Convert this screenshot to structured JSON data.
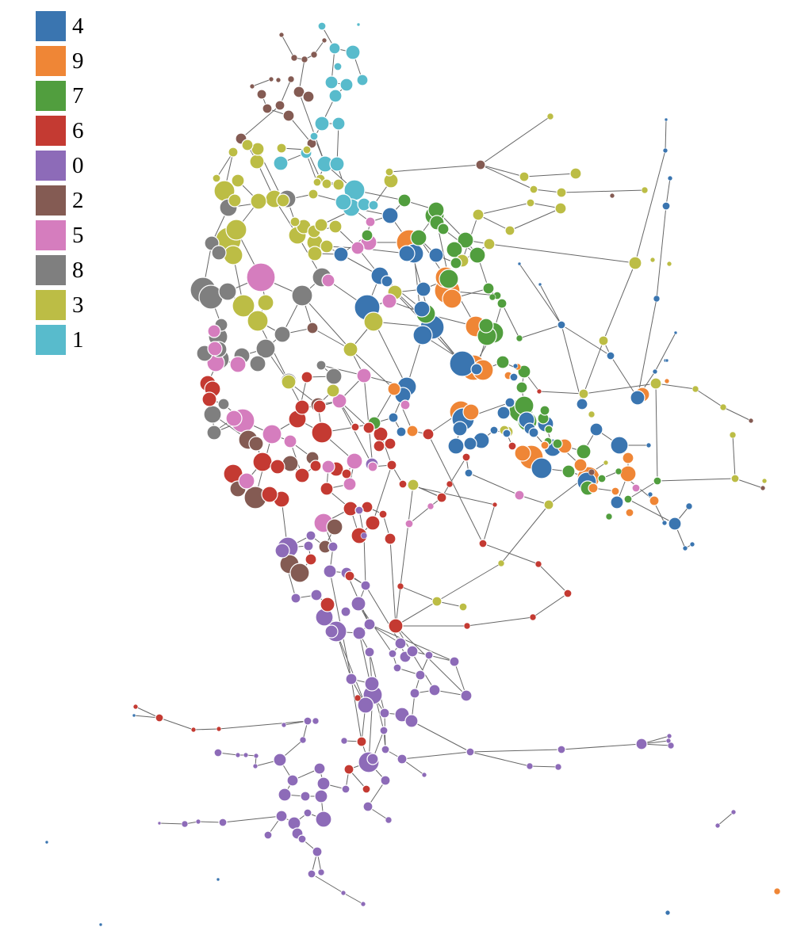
{
  "legend": {
    "items": [
      {
        "label": "4",
        "color": "#3a75b0"
      },
      {
        "label": "9",
        "color": "#ef8636"
      },
      {
        "label": "7",
        "color": "#519e3e"
      },
      {
        "label": "6",
        "color": "#c43a32"
      },
      {
        "label": "0",
        "color": "#8d6bb8"
      },
      {
        "label": "2",
        "color": "#845b53"
      },
      {
        "label": "5",
        "color": "#d57dbe"
      },
      {
        "label": "8",
        "color": "#7f7f7f"
      },
      {
        "label": "3",
        "color": "#bcbd45"
      },
      {
        "label": "1",
        "color": "#58bbcc"
      }
    ]
  },
  "graph": {
    "edge_color": "#666666",
    "node_stroke": "#ffffff"
  }
}
